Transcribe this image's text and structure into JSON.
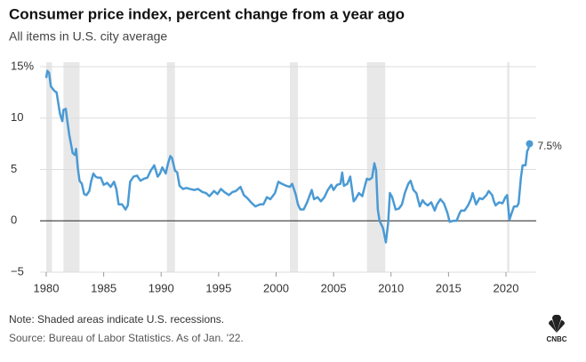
{
  "chart_data": {
    "type": "line",
    "title": "Consumer price index, percent change from a year ago",
    "subtitle": "All items in U.S. city average",
    "note": "Note: Shaded areas indicate U.S. recessions.",
    "source": "Source: Bureau of Labor Statistics. As of Jan. '22.",
    "logo": "CNBC",
    "color": "#4a9ad4",
    "recession_color": "#e8e8e8",
    "grid": true,
    "zero_line": true,
    "xlim": [
      1979.46,
      2022.63
    ],
    "ylim": [
      -5,
      15
    ],
    "xticks": [
      1980,
      1985,
      1990,
      1995,
      2000,
      2005,
      2010,
      2015,
      2020
    ],
    "yticks": [
      {
        "value": -5,
        "label": "−5"
      },
      0,
      5,
      10,
      {
        "value": 15,
        "label": "15%"
      }
    ],
    "recessions": [
      [
        1980.0,
        1980.5
      ],
      [
        1981.5,
        1982.9
      ],
      [
        1990.5,
        1991.2
      ],
      [
        2001.2,
        2001.9
      ],
      [
        2007.9,
        2009.5
      ],
      [
        2020.1,
        2020.3
      ]
    ],
    "end_label": "7.5%",
    "x": [
      1980.0,
      1980.1,
      1980.25,
      1980.4,
      1980.6,
      1980.75,
      1980.9,
      1981.0,
      1981.2,
      1981.4,
      1981.5,
      1981.7,
      1981.85,
      1982.0,
      1982.3,
      1982.5,
      1982.6,
      1982.75,
      1982.9,
      1983.1,
      1983.3,
      1983.5,
      1983.75,
      1983.9,
      1984.1,
      1984.3,
      1984.5,
      1984.75,
      1985.0,
      1985.3,
      1985.6,
      1985.9,
      1986.1,
      1986.3,
      1986.6,
      1986.9,
      1987.1,
      1987.3,
      1987.6,
      1987.9,
      1988.2,
      1988.5,
      1988.8,
      1989.1,
      1989.4,
      1989.7,
      1989.9,
      1990.1,
      1990.4,
      1990.6,
      1990.8,
      1990.95,
      1991.2,
      1991.4,
      1991.6,
      1991.9,
      1992.2,
      1992.5,
      1992.9,
      1993.2,
      1993.6,
      1993.9,
      1994.2,
      1994.6,
      1994.9,
      1995.2,
      1995.5,
      1995.9,
      1996.2,
      1996.5,
      1996.9,
      1997.2,
      1997.5,
      1997.9,
      1998.2,
      1998.6,
      1998.9,
      1999.2,
      1999.5,
      1999.9,
      2000.2,
      2000.5,
      2000.9,
      2001.2,
      2001.4,
      2001.7,
      2001.9,
      2002.1,
      2002.4,
      2002.7,
      2002.9,
      2003.1,
      2003.3,
      2003.6,
      2003.9,
      2004.2,
      2004.5,
      2004.8,
      2005.0,
      2005.3,
      2005.6,
      2005.75,
      2005.9,
      2006.2,
      2006.45,
      2006.75,
      2006.9,
      2007.2,
      2007.5,
      2007.75,
      2007.9,
      2008.1,
      2008.35,
      2008.55,
      2008.7,
      2008.85,
      2009.0,
      2009.3,
      2009.55,
      2009.75,
      2009.9,
      2010.1,
      2010.4,
      2010.7,
      2010.95,
      2011.2,
      2011.5,
      2011.7,
      2011.95,
      2012.2,
      2012.5,
      2012.75,
      2012.95,
      2013.2,
      2013.5,
      2013.8,
      2014.0,
      2014.3,
      2014.6,
      2014.9,
      2015.1,
      2015.4,
      2015.7,
      2015.95,
      2016.1,
      2016.4,
      2016.7,
      2016.95,
      2017.1,
      2017.4,
      2017.7,
      2017.95,
      2018.3,
      2018.5,
      2018.8,
      2018.95,
      2019.1,
      2019.4,
      2019.7,
      2019.95,
      2020.1,
      2020.3,
      2020.45,
      2020.7,
      2020.95,
      2021.1,
      2021.3,
      2021.45,
      2021.7,
      2021.85,
      2021.95,
      2022.05
    ],
    "values": [
      13.9,
      14.6,
      14.4,
      13.1,
      12.8,
      12.6,
      12.5,
      11.8,
      10.4,
      9.7,
      10.8,
      10.9,
      9.6,
      8.4,
      6.6,
      6.4,
      7.0,
      5.1,
      3.9,
      3.6,
      2.6,
      2.5,
      2.9,
      3.8,
      4.6,
      4.3,
      4.2,
      4.2,
      3.5,
      3.7,
      3.3,
      3.8,
      3.1,
      1.6,
      1.6,
      1.1,
      1.5,
      3.8,
      4.3,
      4.4,
      3.9,
      4.1,
      4.2,
      4.9,
      5.4,
      4.3,
      4.6,
      5.2,
      4.6,
      5.6,
      6.3,
      6.1,
      4.9,
      4.7,
      3.4,
      3.1,
      3.2,
      3.1,
      3.0,
      3.1,
      2.8,
      2.7,
      2.4,
      2.9,
      2.6,
      3.1,
      2.8,
      2.5,
      2.8,
      2.9,
      3.3,
      2.5,
      2.2,
      1.7,
      1.4,
      1.6,
      1.6,
      2.3,
      2.1,
      2.7,
      3.8,
      3.6,
      3.4,
      3.3,
      3.6,
      2.6,
      1.6,
      1.1,
      1.1,
      1.8,
      2.4,
      3.0,
      2.1,
      2.3,
      1.9,
      2.3,
      3.0,
      3.5,
      3.0,
      3.5,
      3.6,
      4.7,
      3.4,
      3.6,
      4.3,
      1.9,
      2.1,
      2.7,
      2.4,
      3.5,
      4.1,
      4.0,
      4.2,
      5.6,
      4.9,
      1.1,
      0.0,
      -0.7,
      -2.1,
      -0.2,
      2.7,
      2.3,
      1.1,
      1.2,
      1.6,
      2.7,
      3.6,
      3.9,
      3.0,
      2.7,
      1.4,
      2.0,
      1.7,
      1.5,
      1.8,
      1.0,
      1.6,
      2.1,
      1.7,
      0.8,
      -0.1,
      0.0,
      0.0,
      0.7,
      1.0,
      1.0,
      1.5,
      2.1,
      2.7,
      1.6,
      2.2,
      2.1,
      2.5,
      2.9,
      2.5,
      1.9,
      1.5,
      1.8,
      1.7,
      2.3,
      2.5,
      0.1,
      0.6,
      1.4,
      1.4,
      1.7,
      4.2,
      5.4,
      5.4,
      6.8,
      7.0,
      7.5
    ]
  }
}
